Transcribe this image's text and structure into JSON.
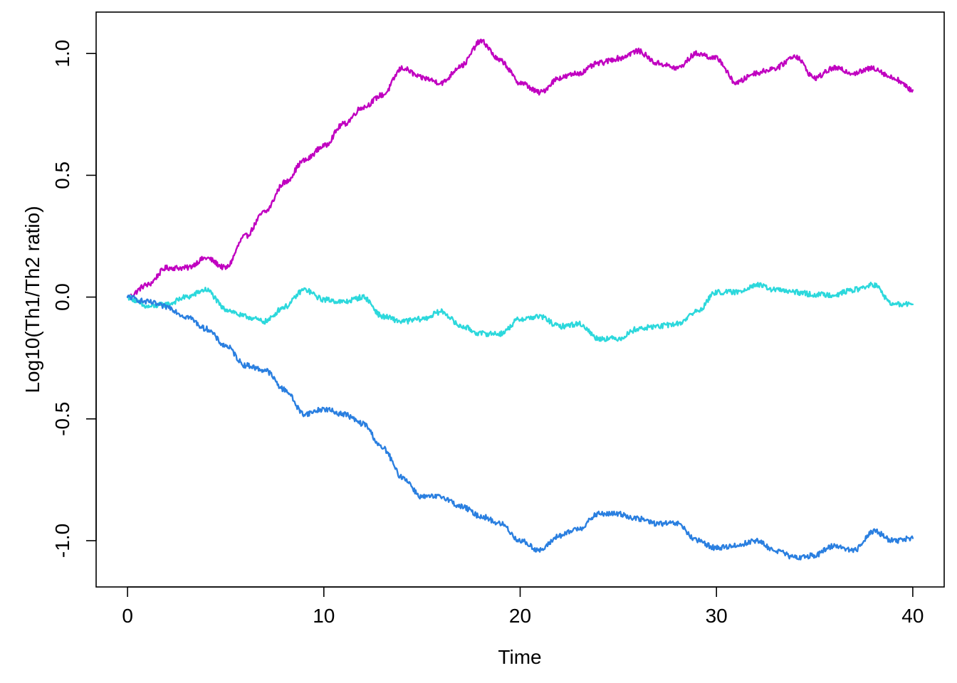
{
  "chart_data": {
    "type": "line",
    "title": "",
    "xlabel": "Time",
    "ylabel": "Log10(Th1/Th2 ratio)",
    "xlim": [
      -1.6,
      41.6
    ],
    "ylim": [
      -1.19,
      1.17
    ],
    "x_ticks": [
      0,
      10,
      20,
      30,
      40
    ],
    "x_tick_labels": [
      "0",
      "10",
      "20",
      "30",
      "40"
    ],
    "y_ticks": [
      -1.0,
      -0.5,
      0.0,
      0.5,
      1.0
    ],
    "y_tick_labels": [
      "-1.0",
      "-0.5",
      "0.0",
      "0.5",
      "1.0"
    ],
    "grid": false,
    "legend": "none",
    "series": [
      {
        "color": "#C000C0",
        "x": [
          0,
          1,
          2,
          3,
          4,
          5,
          6,
          7,
          8,
          9,
          10,
          11,
          12,
          13,
          14,
          15,
          16,
          17,
          18,
          19,
          20,
          21,
          22,
          23,
          24,
          25,
          26,
          27,
          28,
          29,
          30,
          31,
          32,
          33,
          34,
          35,
          36,
          37,
          38,
          39,
          40
        ],
        "y": [
          0.0,
          0.05,
          0.12,
          0.12,
          0.16,
          0.12,
          0.25,
          0.35,
          0.47,
          0.56,
          0.62,
          0.71,
          0.78,
          0.83,
          0.94,
          0.9,
          0.88,
          0.95,
          1.05,
          0.97,
          0.88,
          0.84,
          0.9,
          0.92,
          0.96,
          0.98,
          1.01,
          0.96,
          0.94,
          1.0,
          0.98,
          0.88,
          0.92,
          0.94,
          0.99,
          0.9,
          0.94,
          0.92,
          0.94,
          0.9,
          0.85
        ]
      },
      {
        "color": "#2CD8DC",
        "x": [
          0,
          1,
          2,
          3,
          4,
          5,
          6,
          7,
          8,
          9,
          10,
          11,
          12,
          13,
          14,
          15,
          16,
          17,
          18,
          19,
          20,
          21,
          22,
          23,
          24,
          25,
          26,
          27,
          28,
          29,
          30,
          31,
          32,
          33,
          34,
          35,
          36,
          37,
          38,
          39,
          40
        ],
        "y": [
          0.0,
          -0.04,
          -0.03,
          0.0,
          0.03,
          -0.05,
          -0.08,
          -0.1,
          -0.04,
          0.03,
          -0.01,
          -0.02,
          0.0,
          -0.08,
          -0.1,
          -0.09,
          -0.06,
          -0.12,
          -0.15,
          -0.15,
          -0.09,
          -0.08,
          -0.12,
          -0.11,
          -0.17,
          -0.17,
          -0.13,
          -0.12,
          -0.11,
          -0.06,
          0.02,
          0.02,
          0.05,
          0.03,
          0.02,
          0.01,
          0.01,
          0.03,
          0.05,
          -0.03,
          -0.03
        ]
      },
      {
        "color": "#2A7FE0",
        "x": [
          0,
          1,
          2,
          3,
          4,
          5,
          6,
          7,
          8,
          9,
          10,
          11,
          12,
          13,
          14,
          15,
          16,
          17,
          18,
          19,
          20,
          21,
          22,
          23,
          24,
          25,
          26,
          27,
          28,
          29,
          30,
          31,
          32,
          33,
          34,
          35,
          36,
          37,
          38,
          39,
          40
        ],
        "y": [
          0.0,
          -0.02,
          -0.04,
          -0.08,
          -0.13,
          -0.2,
          -0.28,
          -0.3,
          -0.38,
          -0.48,
          -0.46,
          -0.48,
          -0.52,
          -0.62,
          -0.74,
          -0.82,
          -0.82,
          -0.86,
          -0.9,
          -0.93,
          -1.0,
          -1.04,
          -0.98,
          -0.95,
          -0.89,
          -0.89,
          -0.91,
          -0.93,
          -0.93,
          -1.0,
          -1.03,
          -1.02,
          -1.0,
          -1.04,
          -1.07,
          -1.06,
          -1.02,
          -1.04,
          -0.96,
          -1.0,
          -0.99
        ]
      }
    ]
  }
}
